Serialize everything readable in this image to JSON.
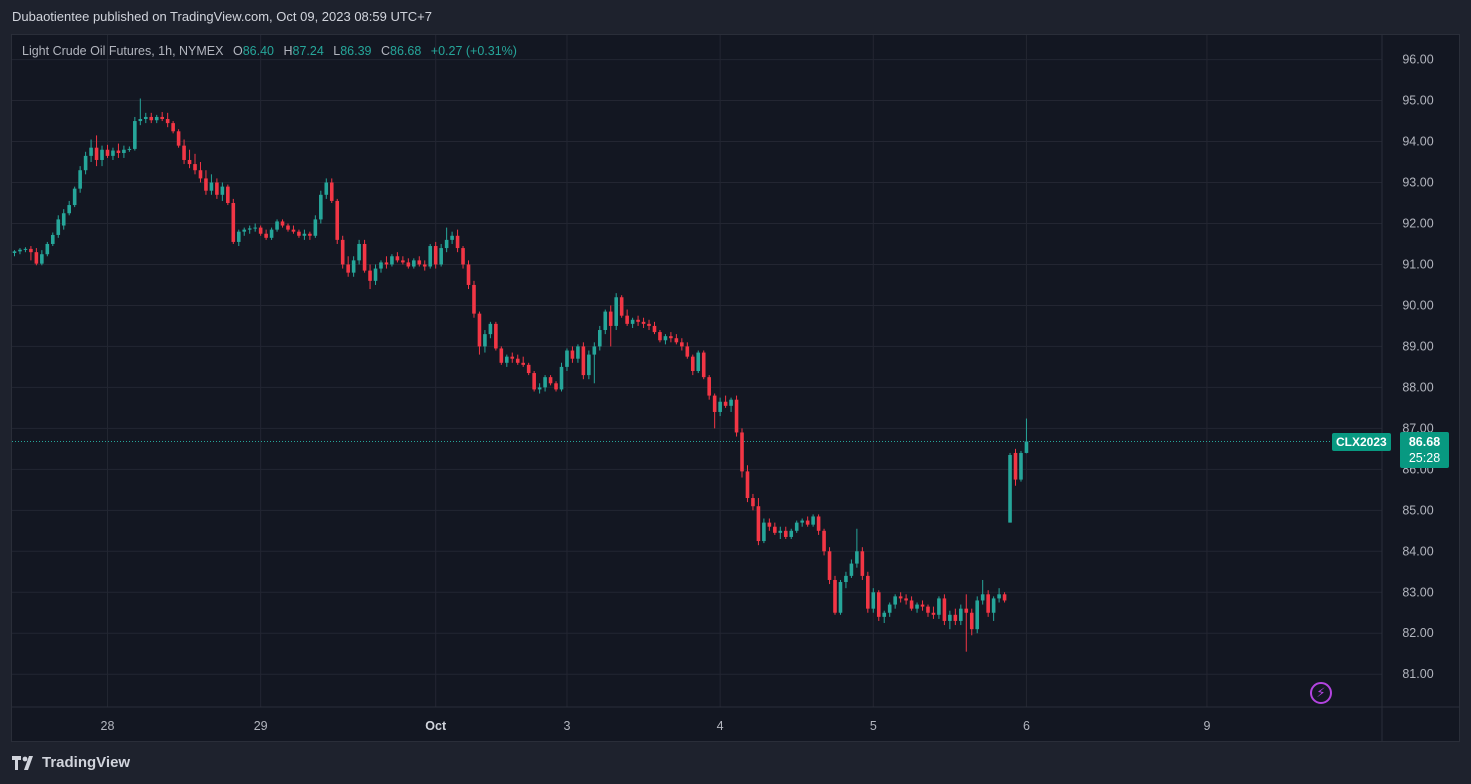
{
  "header": {
    "publisher_text": "Dubaotientee published on TradingView.com, Oct 09, 2023 08:59 UTC+7"
  },
  "legend": {
    "title": "Light Crude Oil Futures, 1h, NYMEX",
    "o_label": "O",
    "o_value": "86.40",
    "h_label": "H",
    "h_value": "87.24",
    "l_label": "L",
    "l_value": "86.39",
    "c_label": "C",
    "c_value": "86.68",
    "change": "+0.27 (+0.31%)"
  },
  "last_price": {
    "symbol": "CLX2023",
    "price": "86.68",
    "countdown": "25:28"
  },
  "footer": {
    "brand": "TradingView"
  },
  "colors": {
    "up": "#26a69a",
    "down": "#f23645",
    "background": "#131722",
    "grid": "#232632",
    "axis_text": "#b2b5be",
    "last_price_line": "#26a69a"
  },
  "chart_data": {
    "type": "candlestick",
    "symbol": "CLX2023",
    "timeframe": "1h",
    "exchange": "NYMEX",
    "ylim": [
      80.2,
      96.6
    ],
    "y_ticks": [
      "96.00",
      "95.00",
      "94.00",
      "93.00",
      "92.00",
      "91.00",
      "90.00",
      "89.00",
      "88.00",
      "87.00",
      "86.00",
      "85.00",
      "84.00",
      "83.00",
      "82.00",
      "81.00"
    ],
    "x_ticks": [
      {
        "label": "28",
        "bold": false
      },
      {
        "label": "29",
        "bold": false
      },
      {
        "label": "Oct",
        "bold": true
      },
      {
        "label": "3",
        "bold": false
      },
      {
        "label": "4",
        "bold": false
      },
      {
        "label": "5",
        "bold": false
      },
      {
        "label": "6",
        "bold": false
      },
      {
        "label": "9",
        "bold": false
      }
    ],
    "x_tick_bar_index": [
      17,
      45,
      77,
      101,
      129,
      157,
      185,
      218
    ],
    "last_price": 86.68,
    "candles": [
      [
        91.28,
        91.35,
        91.2,
        91.32
      ],
      [
        91.32,
        91.4,
        91.25,
        91.36
      ],
      [
        91.36,
        91.42,
        91.3,
        91.38
      ],
      [
        91.38,
        91.45,
        91.1,
        91.3
      ],
      [
        91.3,
        91.4,
        90.98,
        91.02
      ],
      [
        91.02,
        91.35,
        90.98,
        91.25
      ],
      [
        91.25,
        91.55,
        91.2,
        91.5
      ],
      [
        91.5,
        91.78,
        91.45,
        91.72
      ],
      [
        91.72,
        92.2,
        91.65,
        92.1
      ],
      [
        91.95,
        92.35,
        91.85,
        92.25
      ],
      [
        92.25,
        92.55,
        92.2,
        92.45
      ],
      [
        92.45,
        92.9,
        92.4,
        92.85
      ],
      [
        92.85,
        93.4,
        92.75,
        93.3
      ],
      [
        93.3,
        93.75,
        93.2,
        93.65
      ],
      [
        93.65,
        94.05,
        93.5,
        93.85
      ],
      [
        93.85,
        94.15,
        93.4,
        93.55
      ],
      [
        93.55,
        93.9,
        93.4,
        93.8
      ],
      [
        93.8,
        93.92,
        93.6,
        93.65
      ],
      [
        93.65,
        93.85,
        93.55,
        93.78
      ],
      [
        93.78,
        93.95,
        93.6,
        93.72
      ],
      [
        93.72,
        93.9,
        93.6,
        93.8
      ],
      [
        93.8,
        93.88,
        93.75,
        93.82
      ],
      [
        93.82,
        94.6,
        93.78,
        94.5
      ],
      [
        94.5,
        95.05,
        94.4,
        94.55
      ],
      [
        94.55,
        94.7,
        94.45,
        94.6
      ],
      [
        94.6,
        94.7,
        94.45,
        94.52
      ],
      [
        94.52,
        94.65,
        94.45,
        94.6
      ],
      [
        94.6,
        94.72,
        94.5,
        94.55
      ],
      [
        94.55,
        94.7,
        94.35,
        94.45
      ],
      [
        94.45,
        94.5,
        94.2,
        94.25
      ],
      [
        94.25,
        94.3,
        93.85,
        93.9
      ],
      [
        93.9,
        94.05,
        93.45,
        93.55
      ],
      [
        93.55,
        93.8,
        93.35,
        93.45
      ],
      [
        93.45,
        93.7,
        93.2,
        93.3
      ],
      [
        93.3,
        93.5,
        93.0,
        93.1
      ],
      [
        93.1,
        93.3,
        92.7,
        92.8
      ],
      [
        92.8,
        93.2,
        92.7,
        93.0
      ],
      [
        93.0,
        93.1,
        92.6,
        92.7
      ],
      [
        92.7,
        93.0,
        92.55,
        92.9
      ],
      [
        92.9,
        92.95,
        92.45,
        92.5
      ],
      [
        92.5,
        92.6,
        91.5,
        91.55
      ],
      [
        91.55,
        91.85,
        91.45,
        91.8
      ],
      [
        91.8,
        91.9,
        91.7,
        91.85
      ],
      [
        91.85,
        91.95,
        91.75,
        91.88
      ],
      [
        91.88,
        92.0,
        91.8,
        91.9
      ],
      [
        91.9,
        91.95,
        91.7,
        91.75
      ],
      [
        91.75,
        91.85,
        91.6,
        91.65
      ],
      [
        91.65,
        91.9,
        91.6,
        91.85
      ],
      [
        91.85,
        92.1,
        91.8,
        92.05
      ],
      [
        92.05,
        92.1,
        91.9,
        91.95
      ],
      [
        91.95,
        92.0,
        91.8,
        91.85
      ],
      [
        91.85,
        91.95,
        91.75,
        91.8
      ],
      [
        91.8,
        91.85,
        91.65,
        91.7
      ],
      [
        91.7,
        91.85,
        91.6,
        91.75
      ],
      [
        91.75,
        91.8,
        91.6,
        91.7
      ],
      [
        91.7,
        92.2,
        91.65,
        92.1
      ],
      [
        92.1,
        92.8,
        92.0,
        92.7
      ],
      [
        92.7,
        93.1,
        92.6,
        93.0
      ],
      [
        93.0,
        93.1,
        92.5,
        92.55
      ],
      [
        92.55,
        92.6,
        91.5,
        91.6
      ],
      [
        91.6,
        91.7,
        90.9,
        91.0
      ],
      [
        91.0,
        91.2,
        90.7,
        90.8
      ],
      [
        90.8,
        91.2,
        90.7,
        91.1
      ],
      [
        91.1,
        91.6,
        91.0,
        91.5
      ],
      [
        91.5,
        91.6,
        90.8,
        90.85
      ],
      [
        90.85,
        91.0,
        90.4,
        90.6
      ],
      [
        90.6,
        91.0,
        90.5,
        90.9
      ],
      [
        90.9,
        91.1,
        90.8,
        91.05
      ],
      [
        91.05,
        91.2,
        90.9,
        91.0
      ],
      [
        91.0,
        91.25,
        90.95,
        91.2
      ],
      [
        91.2,
        91.3,
        91.05,
        91.1
      ],
      [
        91.1,
        91.2,
        91.0,
        91.05
      ],
      [
        91.05,
        91.15,
        90.9,
        90.95
      ],
      [
        90.95,
        91.15,
        90.9,
        91.1
      ],
      [
        91.1,
        91.2,
        90.95,
        91.0
      ],
      [
        91.0,
        91.1,
        90.85,
        90.95
      ],
      [
        90.95,
        91.5,
        90.9,
        91.45
      ],
      [
        91.45,
        91.55,
        90.9,
        91.0
      ],
      [
        91.0,
        91.5,
        90.95,
        91.4
      ],
      [
        91.4,
        91.9,
        91.3,
        91.6
      ],
      [
        91.6,
        91.8,
        91.5,
        91.7
      ],
      [
        91.7,
        91.85,
        91.3,
        91.4
      ],
      [
        91.4,
        91.45,
        90.9,
        91.0
      ],
      [
        91.0,
        91.1,
        90.4,
        90.5
      ],
      [
        90.5,
        90.6,
        89.7,
        89.8
      ],
      [
        89.8,
        89.85,
        88.8,
        89.0
      ],
      [
        89.0,
        89.4,
        88.85,
        89.3
      ],
      [
        89.3,
        89.6,
        89.2,
        89.55
      ],
      [
        89.55,
        89.6,
        88.9,
        88.95
      ],
      [
        88.95,
        89.0,
        88.55,
        88.6
      ],
      [
        88.6,
        88.8,
        88.5,
        88.75
      ],
      [
        88.75,
        88.85,
        88.6,
        88.7
      ],
      [
        88.7,
        88.8,
        88.55,
        88.6
      ],
      [
        88.6,
        88.75,
        88.5,
        88.55
      ],
      [
        88.55,
        88.6,
        88.3,
        88.35
      ],
      [
        88.35,
        88.4,
        87.9,
        87.95
      ],
      [
        87.95,
        88.1,
        87.85,
        88.0
      ],
      [
        88.0,
        88.3,
        87.9,
        88.25
      ],
      [
        88.25,
        88.3,
        88.05,
        88.1
      ],
      [
        88.1,
        88.15,
        87.9,
        87.95
      ],
      [
        87.95,
        88.6,
        87.9,
        88.5
      ],
      [
        88.5,
        88.95,
        88.4,
        88.9
      ],
      [
        88.9,
        89.0,
        88.6,
        88.7
      ],
      [
        88.7,
        89.05,
        88.6,
        89.0
      ],
      [
        89.0,
        89.1,
        88.2,
        88.3
      ],
      [
        88.3,
        88.9,
        88.2,
        88.8
      ],
      [
        88.8,
        89.1,
        88.1,
        89.0
      ],
      [
        89.0,
        89.5,
        88.9,
        89.4
      ],
      [
        89.4,
        89.9,
        89.3,
        89.85
      ],
      [
        89.85,
        90.0,
        89.0,
        89.5
      ],
      [
        89.5,
        90.3,
        89.4,
        90.2
      ],
      [
        90.2,
        90.25,
        89.7,
        89.75
      ],
      [
        89.75,
        89.9,
        89.5,
        89.55
      ],
      [
        89.55,
        89.7,
        89.45,
        89.65
      ],
      [
        89.65,
        89.75,
        89.5,
        89.6
      ],
      [
        89.6,
        89.7,
        89.45,
        89.55
      ],
      [
        89.55,
        89.65,
        89.4,
        89.5
      ],
      [
        89.5,
        89.6,
        89.3,
        89.35
      ],
      [
        89.35,
        89.4,
        89.1,
        89.15
      ],
      [
        89.15,
        89.3,
        89.05,
        89.25
      ],
      [
        89.25,
        89.35,
        89.1,
        89.2
      ],
      [
        89.2,
        89.3,
        89.05,
        89.1
      ],
      [
        89.1,
        89.2,
        88.9,
        89.0
      ],
      [
        89.0,
        89.1,
        88.7,
        88.75
      ],
      [
        88.75,
        88.8,
        88.3,
        88.4
      ],
      [
        88.4,
        88.9,
        88.35,
        88.85
      ],
      [
        88.85,
        88.9,
        88.2,
        88.25
      ],
      [
        88.25,
        88.3,
        87.7,
        87.8
      ],
      [
        87.8,
        87.85,
        87.0,
        87.4
      ],
      [
        87.4,
        87.75,
        87.3,
        87.65
      ],
      [
        87.65,
        87.8,
        87.5,
        87.55
      ],
      [
        87.55,
        87.75,
        87.4,
        87.7
      ],
      [
        87.7,
        87.8,
        86.8,
        86.9
      ],
      [
        86.9,
        87.0,
        85.8,
        85.95
      ],
      [
        85.95,
        86.1,
        85.2,
        85.3
      ],
      [
        85.3,
        85.4,
        85.0,
        85.1
      ],
      [
        85.1,
        85.3,
        84.15,
        84.25
      ],
      [
        84.25,
        84.8,
        84.2,
        84.7
      ],
      [
        84.7,
        84.8,
        84.5,
        84.6
      ],
      [
        84.6,
        84.7,
        84.4,
        84.45
      ],
      [
        84.45,
        84.6,
        84.3,
        84.5
      ],
      [
        84.5,
        84.6,
        84.3,
        84.35
      ],
      [
        84.35,
        84.55,
        84.3,
        84.5
      ],
      [
        84.5,
        84.75,
        84.45,
        84.7
      ],
      [
        84.7,
        84.8,
        84.6,
        84.75
      ],
      [
        84.75,
        84.85,
        84.6,
        84.65
      ],
      [
        84.65,
        84.9,
        84.6,
        84.85
      ],
      [
        84.85,
        84.9,
        84.4,
        84.5
      ],
      [
        84.5,
        84.55,
        83.9,
        84.0
      ],
      [
        84.0,
        84.1,
        83.2,
        83.3
      ],
      [
        83.3,
        83.4,
        82.45,
        82.5
      ],
      [
        82.5,
        83.3,
        82.45,
        83.25
      ],
      [
        83.25,
        83.5,
        83.1,
        83.4
      ],
      [
        83.4,
        83.8,
        83.35,
        83.7
      ],
      [
        83.7,
        84.55,
        83.6,
        84.0
      ],
      [
        84.0,
        84.1,
        83.3,
        83.4
      ],
      [
        83.4,
        83.5,
        82.5,
        82.6
      ],
      [
        82.6,
        83.1,
        82.5,
        83.0
      ],
      [
        83.0,
        83.05,
        82.3,
        82.4
      ],
      [
        82.4,
        82.55,
        82.25,
        82.5
      ],
      [
        82.5,
        82.75,
        82.4,
        82.7
      ],
      [
        82.7,
        82.95,
        82.6,
        82.9
      ],
      [
        82.9,
        83.0,
        82.75,
        82.85
      ],
      [
        82.85,
        82.95,
        82.7,
        82.8
      ],
      [
        82.8,
        82.9,
        82.55,
        82.6
      ],
      [
        82.6,
        82.75,
        82.5,
        82.7
      ],
      [
        82.7,
        82.8,
        82.55,
        82.65
      ],
      [
        82.65,
        82.7,
        82.4,
        82.5
      ],
      [
        82.5,
        82.65,
        82.35,
        82.45
      ],
      [
        82.45,
        82.9,
        82.35,
        82.85
      ],
      [
        82.85,
        82.95,
        82.2,
        82.3
      ],
      [
        82.3,
        82.55,
        82.1,
        82.45
      ],
      [
        82.45,
        82.6,
        82.2,
        82.3
      ],
      [
        82.3,
        82.7,
        82.2,
        82.6
      ],
      [
        82.6,
        82.95,
        81.55,
        82.5
      ],
      [
        82.5,
        82.6,
        81.95,
        82.1
      ],
      [
        82.1,
        82.9,
        82.0,
        82.8
      ],
      [
        82.8,
        83.3,
        82.7,
        82.95
      ],
      [
        82.95,
        83.05,
        82.4,
        82.5
      ],
      [
        82.5,
        82.9,
        82.3,
        82.85
      ],
      [
        82.85,
        83.1,
        82.75,
        82.95
      ],
      [
        82.95,
        83.0,
        82.75,
        82.8
      ],
      [
        84.7,
        86.4,
        84.7,
        86.35
      ],
      [
        86.4,
        86.5,
        85.6,
        85.75
      ],
      [
        85.75,
        86.45,
        85.7,
        86.4
      ],
      [
        86.4,
        87.24,
        86.39,
        86.68
      ]
    ]
  }
}
